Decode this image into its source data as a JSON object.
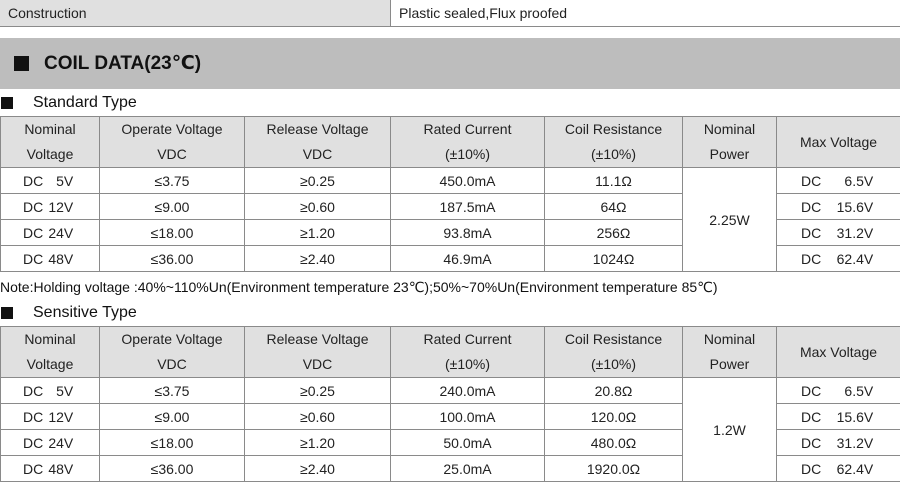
{
  "construction": {
    "label": "Construction",
    "value": "Plastic sealed,Flux proofed"
  },
  "section": {
    "title": "COIL DATA(23℃)"
  },
  "headers": [
    {
      "line1": "Nominal",
      "line2": "Voltage"
    },
    {
      "line1": "Operate Voltage",
      "line2": "VDC"
    },
    {
      "line1": "Release Voltage",
      "line2": "VDC"
    },
    {
      "line1": "Rated Current",
      "line2": "(±10%)"
    },
    {
      "line1": "Coil Resistance",
      "line2": "(±10%)"
    },
    {
      "line1": "Nominal",
      "line2": "Power"
    },
    {
      "line1": "Max Voltage",
      "line2": ""
    }
  ],
  "standard": {
    "title": "Standard Type",
    "power": "2.25W",
    "rows": [
      {
        "dc": "DC",
        "nominal": "5V",
        "operate": "≤3.75",
        "release": "≥0.25",
        "current": "450.0mA",
        "resistance": "11.1Ω",
        "max_dc": "DC",
        "max": "6.5V"
      },
      {
        "dc": "DC",
        "nominal": "12V",
        "operate": "≤9.00",
        "release": "≥0.60",
        "current": "187.5mA",
        "resistance": "64Ω",
        "max_dc": "DC",
        "max": "15.6V"
      },
      {
        "dc": "DC",
        "nominal": "24V",
        "operate": "≤18.00",
        "release": "≥1.20",
        "current": "93.8mA",
        "resistance": "256Ω",
        "max_dc": "DC",
        "max": "31.2V"
      },
      {
        "dc": "DC",
        "nominal": "48V",
        "operate": "≤36.00",
        "release": "≥2.40",
        "current": "46.9mA",
        "resistance": "1024Ω",
        "max_dc": "DC",
        "max": "62.4V"
      }
    ]
  },
  "note": "Note:Holding voltage :40%~110%Un(Environment temperature 23℃);50%~70%Un(Environment temperature 85℃)",
  "sensitive": {
    "title": "Sensitive Type",
    "power": "1.2W",
    "rows": [
      {
        "dc": "DC",
        "nominal": "5V",
        "operate": "≤3.75",
        "release": "≥0.25",
        "current": "240.0mA",
        "resistance": "20.8Ω",
        "max_dc": "DC",
        "max": "6.5V"
      },
      {
        "dc": "DC",
        "nominal": "12V",
        "operate": "≤9.00",
        "release": "≥0.60",
        "current": "100.0mA",
        "resistance": "120.0Ω",
        "max_dc": "DC",
        "max": "15.6V"
      },
      {
        "dc": "DC",
        "nominal": "24V",
        "operate": "≤18.00",
        "release": "≥1.20",
        "current": "50.0mA",
        "resistance": "480.0Ω",
        "max_dc": "DC",
        "max": "31.2V"
      },
      {
        "dc": "DC",
        "nominal": "48V",
        "operate": "≤36.00",
        "release": "≥2.40",
        "current": "25.0mA",
        "resistance": "1920.0Ω",
        "max_dc": "DC",
        "max": "62.4V"
      }
    ]
  }
}
